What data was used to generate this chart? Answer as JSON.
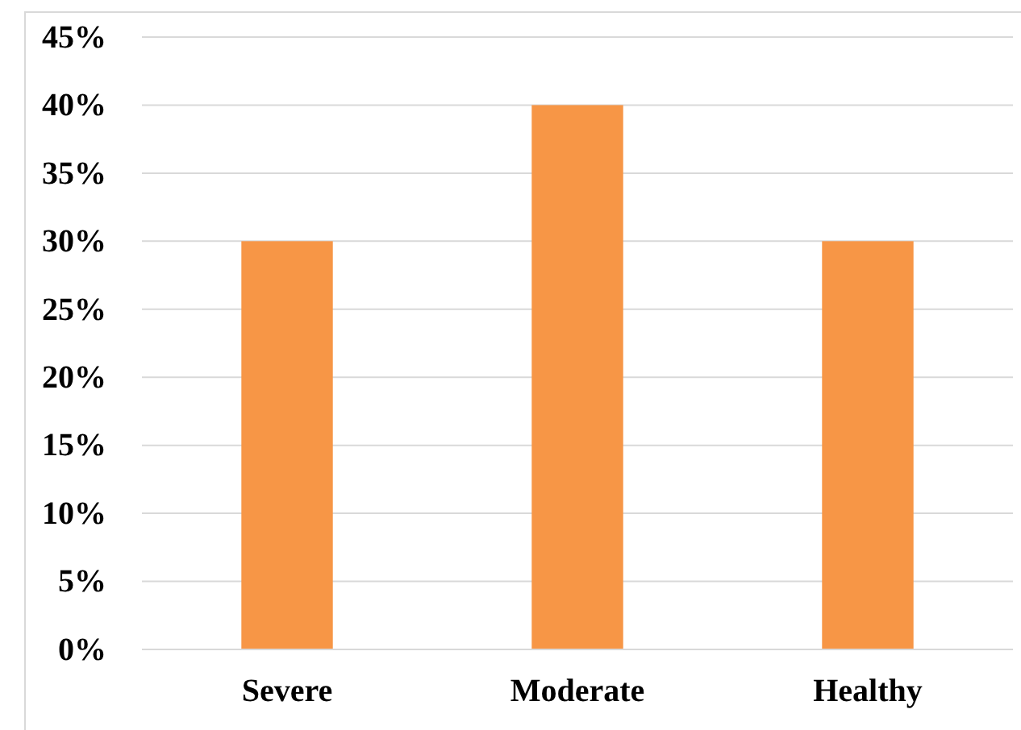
{
  "chart_data": {
    "type": "bar",
    "categories": [
      "Severe",
      "Moderate",
      "Healthy"
    ],
    "values": [
      30,
      40,
      30
    ],
    "color": "#f79646",
    "ylim": [
      0,
      45
    ],
    "yticks": [
      {
        "value": 0,
        "label": "0%"
      },
      {
        "value": 5,
        "label": "5%"
      },
      {
        "value": 10,
        "label": "10%"
      },
      {
        "value": 15,
        "label": "15%"
      },
      {
        "value": 20,
        "label": "20%"
      },
      {
        "value": 25,
        "label": "25%"
      },
      {
        "value": 30,
        "label": "30%"
      },
      {
        "value": 35,
        "label": "35%"
      },
      {
        "value": 40,
        "label": "40%"
      },
      {
        "value": 45,
        "label": "45%"
      }
    ],
    "grid": true
  }
}
